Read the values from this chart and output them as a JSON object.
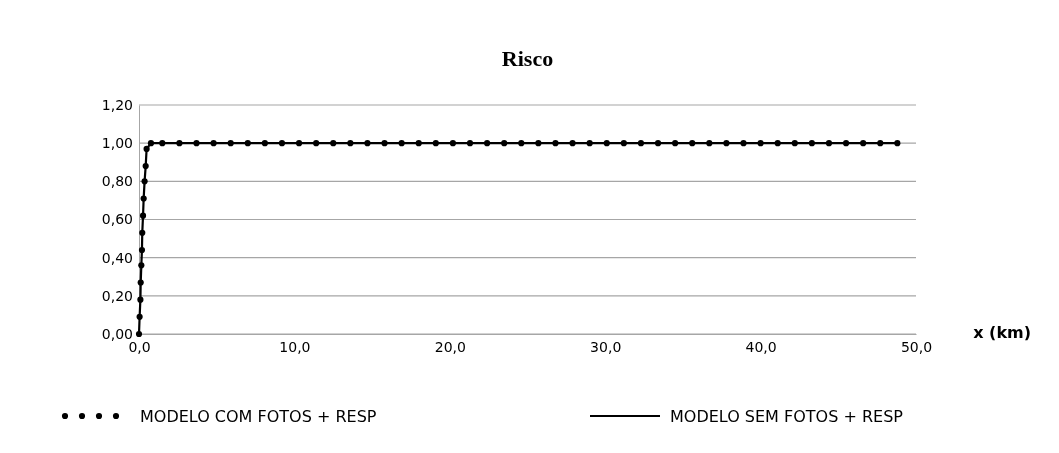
{
  "chart_data": {
    "type": "line",
    "title": "Risco",
    "xlabel": "x (km)",
    "x": [
      0,
      0.04,
      0.09,
      0.11,
      0.15,
      0.19,
      0.21,
      0.26,
      0.3,
      0.36,
      0.43,
      0.49,
      0.77,
      1.5,
      2.6,
      3.7,
      4.8,
      5.9,
      7,
      8.1,
      9.2,
      10.3,
      11.4,
      12.5,
      13.6,
      14.7,
      15.8,
      16.9,
      18,
      19.1,
      20.2,
      21.3,
      22.4,
      23.5,
      24.6,
      25.7,
      26.8,
      27.9,
      29,
      30.1,
      31.2,
      32.3,
      33.4,
      34.5,
      35.6,
      36.7,
      37.8,
      38.9,
      40,
      41.1,
      42.2,
      43.3,
      44.4,
      45.5,
      46.6,
      47.7,
      48.8
    ],
    "series": [
      {
        "name": "MODELO COM FOTOS + RESP",
        "type": "scatter",
        "marker": "circle",
        "color": "#000000",
        "values": [
          0,
          0.09,
          0.18,
          0.27,
          0.36,
          0.44,
          0.53,
          0.62,
          0.71,
          0.8,
          0.88,
          0.97,
          1,
          1,
          1,
          1,
          1,
          1,
          1,
          1,
          1,
          1,
          1,
          1,
          1,
          1,
          1,
          1,
          1,
          1,
          1,
          1,
          1,
          1,
          1,
          1,
          1,
          1,
          1,
          1,
          1,
          1,
          1,
          1,
          1,
          1,
          1,
          1,
          1,
          1,
          1,
          1,
          1,
          1,
          1,
          1,
          1
        ]
      },
      {
        "name": "MODELO SEM FOTOS + RESP",
        "line_style": "solid",
        "color": "#000000",
        "values": [
          0,
          0.09,
          0.18,
          0.27,
          0.36,
          0.44,
          0.53,
          0.62,
          0.71,
          0.8,
          0.88,
          0.97,
          1,
          1,
          1,
          1,
          1,
          1,
          1,
          1,
          1,
          1,
          1,
          1,
          1,
          1,
          1,
          1,
          1,
          1,
          1,
          1,
          1,
          1,
          1,
          1,
          1,
          1,
          1,
          1,
          1,
          1,
          1,
          1,
          1,
          1,
          1,
          1,
          1,
          1,
          1,
          1,
          1,
          1,
          1,
          1,
          1
        ]
      }
    ],
    "xlim": [
      0,
      50
    ],
    "xticks": [
      {
        "value": 0,
        "label": "0,0"
      },
      {
        "value": 10,
        "label": "10,0"
      },
      {
        "value": 20,
        "label": "20,0"
      },
      {
        "value": 30,
        "label": "30,0"
      },
      {
        "value": 40,
        "label": "40,0"
      },
      {
        "value": 50,
        "label": "50,0"
      }
    ],
    "ylim": [
      0,
      1.2
    ],
    "yticks": [
      {
        "value": 0,
        "label": "0,00"
      },
      {
        "value": 0.2,
        "label": "0,20"
      },
      {
        "value": 0.4,
        "label": "0,40"
      },
      {
        "value": 0.6,
        "label": "0,60"
      },
      {
        "value": 0.8,
        "label": "0,80"
      },
      {
        "value": 1,
        "label": "1,00"
      },
      {
        "value": 1.2,
        "label": "1,20"
      }
    ],
    "grid": "y",
    "legend": "bottom"
  }
}
